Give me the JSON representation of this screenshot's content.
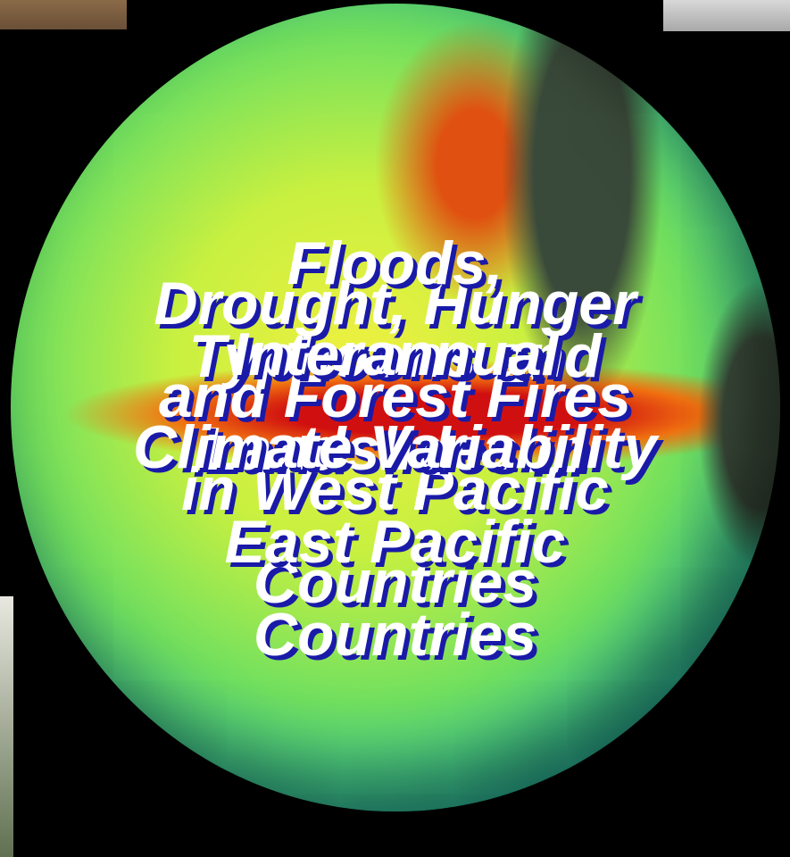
{
  "slide": {
    "overlays": [
      {
        "lines": [
          "Drought, Hunger",
          "and Forest Fires",
          "in West Pacific",
          "Countries"
        ]
      },
      {
        "lines": [
          "Floods,",
          "Typhoons and",
          "Landslides in",
          "East Pacific",
          "Countries"
        ]
      },
      {
        "lines": [
          "Interannual",
          "Climate Variability"
        ]
      }
    ]
  }
}
